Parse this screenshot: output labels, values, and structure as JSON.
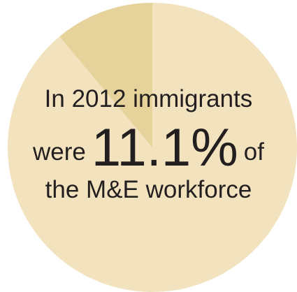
{
  "chart_data": {
    "type": "pie",
    "slices": [
      {
        "label": "",
        "value": 88.9,
        "color": "#f2e3be"
      },
      {
        "label": "",
        "value": 11.1,
        "color": "#e6d39b"
      }
    ],
    "start_angle_deg": -90,
    "direction": "counterclockwise"
  },
  "callout": {
    "line1": "In 2012 immigrants",
    "line2_prefix": "were",
    "percent": "11.1%",
    "line2_suffix": "of",
    "line3": "the M&E workforce"
  }
}
